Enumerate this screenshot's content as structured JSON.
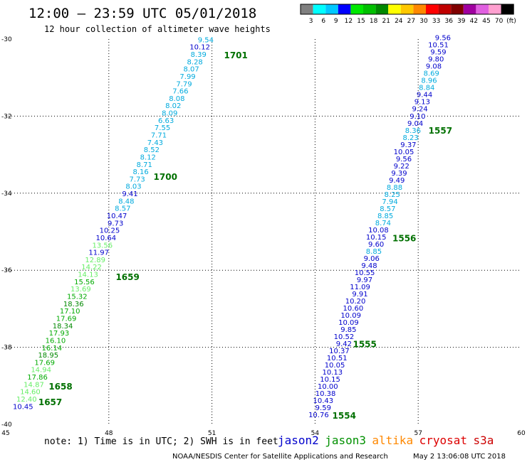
{
  "header": {
    "title": "12:00 – 23:59 UTC 05/01/2018",
    "subtitle": "12 hour collection of altimeter wave heights"
  },
  "colorbar": {
    "unit": "(ft)",
    "bins": [
      {
        "color": "#808080",
        "label": "3"
      },
      {
        "color": "#00ffff",
        "label": "6"
      },
      {
        "color": "#00c8ff",
        "label": "9"
      },
      {
        "color": "#0000ff",
        "label": "12"
      },
      {
        "color": "#00e800",
        "label": "15"
      },
      {
        "color": "#00c000",
        "label": "18"
      },
      {
        "color": "#008800",
        "label": "21"
      },
      {
        "color": "#ffff00",
        "label": "24"
      },
      {
        "color": "#ffc800",
        "label": "27"
      },
      {
        "color": "#ff8800",
        "label": "30"
      },
      {
        "color": "#ff0000",
        "label": "33"
      },
      {
        "color": "#c00000",
        "label": "36"
      },
      {
        "color": "#800000",
        "label": "39"
      },
      {
        "color": "#a000a0",
        "label": "42"
      },
      {
        "color": "#e060e0",
        "label": "45"
      },
      {
        "color": "#ffa0d0",
        "label": "70"
      },
      {
        "color": "#000000",
        "label": ""
      }
    ]
  },
  "note": "note: 1) Time is in UTC; 2) SWH is in feet",
  "satellites": [
    {
      "name": "jason2",
      "color": "#0000cc"
    },
    {
      "name": "jason3",
      "color": "#009000"
    },
    {
      "name": "altika",
      "color": "#ff8800"
    },
    {
      "name": "cryosat",
      "color": "#dd0000"
    },
    {
      "name": "s3a",
      "color": "#cc0000"
    }
  ],
  "footer": {
    "credit": "NOAA/NESDIS Center for Satellite Applications and Research",
    "timestamp": "May  2 13:06:08 UTC 2018"
  },
  "chart_data": {
    "type": "scatter",
    "xlim": [
      45,
      60
    ],
    "ylim": [
      -40,
      -30
    ],
    "xticks": [
      {
        "value": 45,
        "label": "45"
      },
      {
        "value": 48,
        "label": "48"
      },
      {
        "value": 51,
        "label": "51"
      },
      {
        "value": 54,
        "label": "54"
      },
      {
        "value": 57,
        "label": "57"
      },
      {
        "value": 60,
        "label": "60"
      }
    ],
    "yticks": [
      {
        "value": -30,
        "label": "-30"
      },
      {
        "value": -32,
        "label": "-32"
      },
      {
        "value": -34,
        "label": "-34"
      },
      {
        "value": -36,
        "label": "-36"
      },
      {
        "value": -38,
        "label": "-38"
      },
      {
        "value": -40,
        "label": "-40"
      }
    ],
    "grid": true,
    "tracks": [
      {
        "start": [
          51.05,
          -30.08
        ],
        "end": [
          45.8,
          -39.6
        ],
        "points": [
          {
            "v": "9.54",
            "c": "#00aadd"
          },
          {
            "v": "10.12",
            "c": "#0000cc"
          },
          {
            "v": "8.39",
            "c": "#00aadd"
          },
          {
            "v": "8.28",
            "c": "#00aadd"
          },
          {
            "v": "8.07",
            "c": "#00aadd"
          },
          {
            "v": "7.99",
            "c": "#00aadd"
          },
          {
            "v": "7.79",
            "c": "#00aadd"
          },
          {
            "v": "7.66",
            "c": "#00aadd"
          },
          {
            "v": "8.08",
            "c": "#00aadd"
          },
          {
            "v": "8.02",
            "c": "#00aadd"
          },
          {
            "v": "8.09",
            "c": "#00aadd"
          },
          {
            "v": "6.63",
            "c": "#00aadd"
          },
          {
            "v": "7.55",
            "c": "#00aadd"
          },
          {
            "v": "7.71",
            "c": "#00aadd"
          },
          {
            "v": "7.43",
            "c": "#00aadd"
          },
          {
            "v": "8.52",
            "c": "#00aadd"
          },
          {
            "v": "8.12",
            "c": "#00aadd"
          },
          {
            "v": "8.71",
            "c": "#00aadd"
          },
          {
            "v": "8.16",
            "c": "#00aadd"
          },
          {
            "v": "7.73",
            "c": "#00aadd"
          },
          {
            "v": "8.03",
            "c": "#00aadd"
          },
          {
            "v": "9.41",
            "c": "#0000cc"
          },
          {
            "v": "8.48",
            "c": "#00aadd"
          },
          {
            "v": "8.57",
            "c": "#00aadd"
          },
          {
            "v": "10.47",
            "c": "#0000cc"
          },
          {
            "v": "9.73",
            "c": "#0000cc"
          },
          {
            "v": "10.25",
            "c": "#0000cc"
          },
          {
            "v": "10.64",
            "c": "#0000cc"
          },
          {
            "v": "13.56",
            "c": "#66ee66"
          },
          {
            "v": "11.97",
            "c": "#0000cc"
          },
          {
            "v": "12.89",
            "c": "#66ee66"
          },
          {
            "v": "14.22",
            "c": "#66ee66"
          },
          {
            "v": "14.13",
            "c": "#66ee66"
          },
          {
            "v": "15.56",
            "c": "#00aa00"
          },
          {
            "v": "13.69",
            "c": "#66ee66"
          },
          {
            "v": "15.32",
            "c": "#00aa00"
          },
          {
            "v": "18.36",
            "c": "#008800"
          },
          {
            "v": "17.10",
            "c": "#00aa00"
          },
          {
            "v": "17.69",
            "c": "#00aa00"
          },
          {
            "v": "18.34",
            "c": "#008800"
          },
          {
            "v": "17.93",
            "c": "#00aa00"
          },
          {
            "v": "16.10",
            "c": "#00aa00"
          },
          {
            "v": "16.14",
            "c": "#00aa00"
          },
          {
            "v": "18.95",
            "c": "#008800"
          },
          {
            "v": "17.69",
            "c": "#00aa00"
          },
          {
            "v": "14.94",
            "c": "#66ee66"
          },
          {
            "v": "17.86",
            "c": "#00aa00"
          },
          {
            "v": "14.87",
            "c": "#66ee66"
          },
          {
            "v": "14.60",
            "c": "#66ee66"
          },
          {
            "v": "12.40",
            "c": "#66ee66"
          },
          {
            "v": "10.45",
            "c": "#0000cc"
          }
        ],
        "time_labels": [
          {
            "text": "1701",
            "lat": -30.5,
            "lon": 51.35
          },
          {
            "text": "1700",
            "lat": -33.65,
            "lon": 49.3
          },
          {
            "text": "1659",
            "lat": -36.25,
            "lon": 48.2
          },
          {
            "text": "1658",
            "lat": -39.1,
            "lon": 46.25
          },
          {
            "text": "1657",
            "lat": -39.5,
            "lon": 45.95
          }
        ]
      },
      {
        "start": [
          57.95,
          -30.03
        ],
        "end": [
          54.4,
          -39.82
        ],
        "points": [
          {
            "v": "9.56",
            "c": "#0000cc"
          },
          {
            "v": "10.51",
            "c": "#0000cc"
          },
          {
            "v": "9.59",
            "c": "#0000cc"
          },
          {
            "v": "9.80",
            "c": "#0000cc"
          },
          {
            "v": "9.08",
            "c": "#0000cc"
          },
          {
            "v": "8.69",
            "c": "#00aadd"
          },
          {
            "v": "8.96",
            "c": "#00aadd"
          },
          {
            "v": "8.84",
            "c": "#00aadd"
          },
          {
            "v": "9.44",
            "c": "#0000cc"
          },
          {
            "v": "9.13",
            "c": "#0000cc"
          },
          {
            "v": "9.24",
            "c": "#0000cc"
          },
          {
            "v": "9.10",
            "c": "#0000cc"
          },
          {
            "v": "9.04",
            "c": "#0000cc"
          },
          {
            "v": "8.36",
            "c": "#00aadd"
          },
          {
            "v": "8.23",
            "c": "#00aadd"
          },
          {
            "v": "9.37",
            "c": "#0000cc"
          },
          {
            "v": "10.05",
            "c": "#0000cc"
          },
          {
            "v": "9.56",
            "c": "#0000cc"
          },
          {
            "v": "9.22",
            "c": "#0000cc"
          },
          {
            "v": "9.39",
            "c": "#0000cc"
          },
          {
            "v": "9.49",
            "c": "#0000cc"
          },
          {
            "v": "8.88",
            "c": "#00aadd"
          },
          {
            "v": "8.25",
            "c": "#00aadd"
          },
          {
            "v": "7.94",
            "c": "#00aadd"
          },
          {
            "v": "8.57",
            "c": "#00aadd"
          },
          {
            "v": "8.85",
            "c": "#00aadd"
          },
          {
            "v": "8.74",
            "c": "#00aadd"
          },
          {
            "v": "10.08",
            "c": "#0000cc"
          },
          {
            "v": "10.15",
            "c": "#0000cc"
          },
          {
            "v": "9.60",
            "c": "#0000cc"
          },
          {
            "v": "8.85",
            "c": "#00aadd"
          },
          {
            "v": "9.06",
            "c": "#0000cc"
          },
          {
            "v": "9.48",
            "c": "#0000cc"
          },
          {
            "v": "10.55",
            "c": "#0000cc"
          },
          {
            "v": "9.97",
            "c": "#0000cc"
          },
          {
            "v": "11.09",
            "c": "#0000cc"
          },
          {
            "v": "9.91",
            "c": "#0000cc"
          },
          {
            "v": "10.20",
            "c": "#0000cc"
          },
          {
            "v": "10.60",
            "c": "#0000cc"
          },
          {
            "v": "10.09",
            "c": "#0000cc"
          },
          {
            "v": "10.09",
            "c": "#0000cc"
          },
          {
            "v": "9.85",
            "c": "#0000cc"
          },
          {
            "v": "10.52",
            "c": "#0000cc"
          },
          {
            "v": "9.42",
            "c": "#0000cc"
          },
          {
            "v": "10.37",
            "c": "#0000cc"
          },
          {
            "v": "10.51",
            "c": "#0000cc"
          },
          {
            "v": "10.05",
            "c": "#0000cc"
          },
          {
            "v": "10.13",
            "c": "#0000cc"
          },
          {
            "v": "10.15",
            "c": "#0000cc"
          },
          {
            "v": "10.00",
            "c": "#0000cc"
          },
          {
            "v": "10.38",
            "c": "#0000cc"
          },
          {
            "v": "10.43",
            "c": "#0000cc"
          },
          {
            "v": "9.59",
            "c": "#0000cc"
          },
          {
            "v": "10.76",
            "c": "#0000cc"
          }
        ],
        "time_labels": [
          {
            "text": "1557",
            "lat": -32.45,
            "lon": 57.3
          },
          {
            "text": "1556",
            "lat": -35.25,
            "lon": 56.25
          },
          {
            "text": "1555",
            "lat": -38.0,
            "lon": 55.1
          },
          {
            "text": "1554",
            "lat": -39.85,
            "lon": 54.5
          }
        ]
      }
    ]
  }
}
